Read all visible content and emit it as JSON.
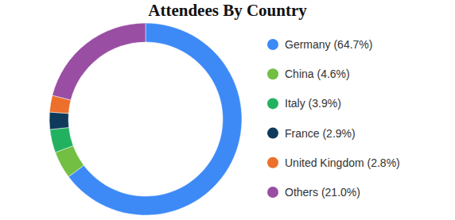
{
  "chart_data": {
    "type": "donut",
    "title": "Attendees By Country",
    "categories": [
      "Germany (64.7%)",
      "China (4.6%)",
      "Italy (3.9%)",
      "France (2.9%)",
      "United Kingdom (2.8%)",
      "Others (21.0%)"
    ],
    "values": [
      64.7,
      4.6,
      3.9,
      2.9,
      2.8,
      21.0
    ],
    "colors": [
      "#3d8af7",
      "#72bf44",
      "#22b25f",
      "#0f3a5b",
      "#ec6f2b",
      "#994ea4"
    ],
    "legend": "right"
  }
}
